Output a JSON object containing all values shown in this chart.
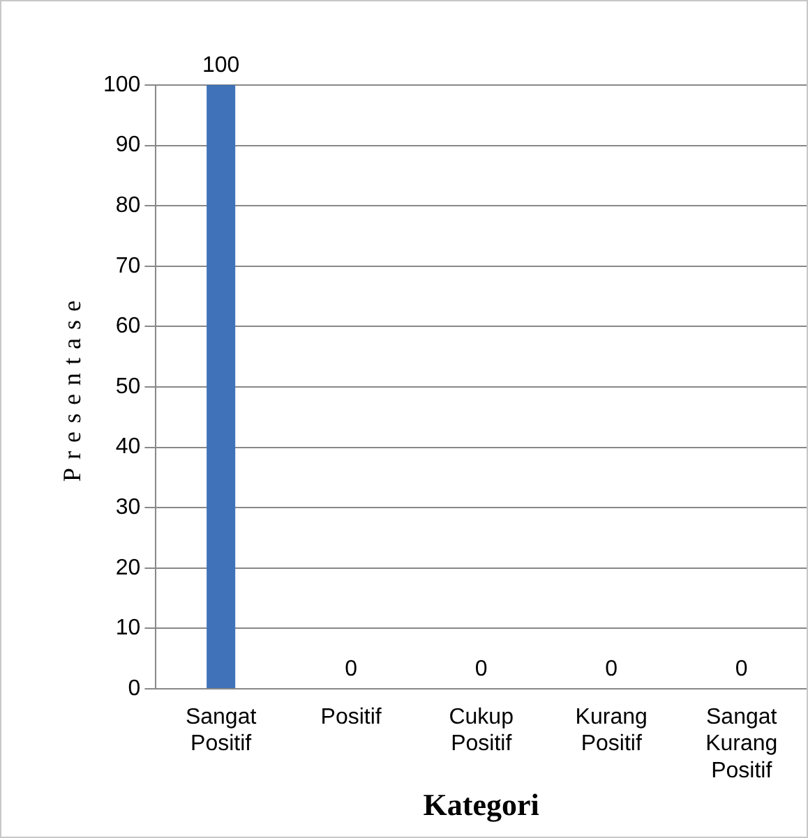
{
  "chart_data": {
    "type": "bar",
    "xlabel": "Kategori",
    "ylabel": "Presentase",
    "categories": [
      "Sangat Positif",
      "Positif",
      "Cukup Positif",
      "Kurang Positif",
      "Sangat Kurang Positif"
    ],
    "values": [
      100,
      0,
      0,
      0,
      0
    ],
    "color": "#3f72b8",
    "ylim": [
      0,
      100
    ],
    "yticks": [
      0,
      10,
      20,
      30,
      40,
      50,
      60,
      70,
      80,
      90,
      100
    ],
    "grid": "y",
    "data_labels": true,
    "legend": false
  }
}
